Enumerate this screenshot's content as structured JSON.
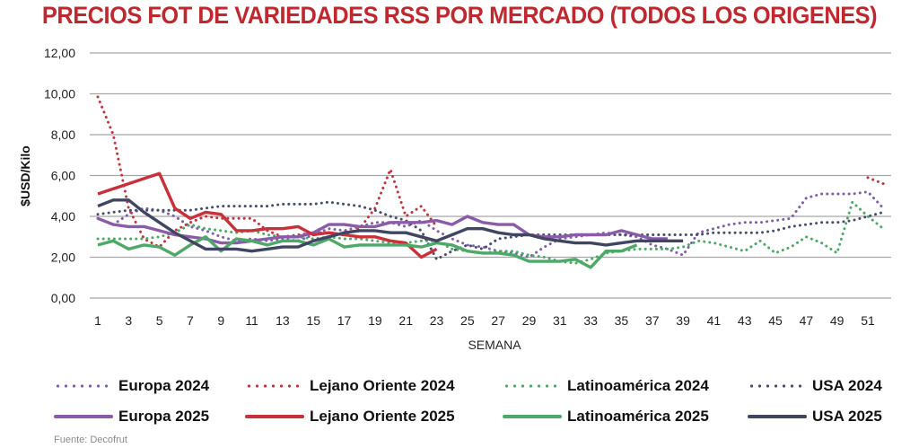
{
  "chart_data": {
    "type": "line",
    "title": "PRECIOS FOT DE VARIEDADES RSS POR MERCADO (TODOS LOS ORIGENES)",
    "xlabel": "SEMANA",
    "ylabel": "$USD/Kilo",
    "ylim": [
      0,
      12
    ],
    "yticks": [
      "0,00",
      "2,00",
      "4,00",
      "6,00",
      "8,00",
      "10,00",
      "12,00"
    ],
    "ytick_values": [
      0,
      2,
      4,
      6,
      8,
      10,
      12
    ],
    "xticks": [
      "1",
      "3",
      "5",
      "7",
      "9",
      "11",
      "13",
      "15",
      "17",
      "19",
      "21",
      "23",
      "25",
      "27",
      "29",
      "31",
      "33",
      "35",
      "37",
      "39",
      "41",
      "43",
      "45",
      "47",
      "49",
      "51"
    ],
    "xlim": [
      1,
      52
    ],
    "grid": "horizontal",
    "legend_placement": "bottom",
    "series": [
      {
        "name": "Europa 2024",
        "color": "#7f5fa8",
        "style": "dotted",
        "start_week": 1,
        "values": [
          3.9,
          3.6,
          4.1,
          4.4,
          4.3,
          4.0,
          3.5,
          3.3,
          3.0,
          2.8,
          2.9,
          2.8,
          2.9,
          2.8,
          3.1,
          3.4,
          3.3,
          3.5,
          3.7,
          3.7,
          3.5,
          3.8,
          3.3,
          2.9,
          2.6,
          2.5,
          2.3,
          2.2,
          2.0,
          2.5,
          2.9,
          3.0,
          3.1,
          3.2,
          3.1,
          3.0,
          2.6,
          2.4,
          2.1,
          3.2,
          3.4,
          3.6,
          3.7,
          3.7,
          3.8,
          3.9,
          4.9,
          5.1,
          5.1,
          5.1,
          5.2,
          4.4
        ]
      },
      {
        "name": "Lejano Oriente 2024",
        "color": "#c0363e",
        "style": "dotted",
        "start_week": 1,
        "values": [
          9.85,
          8.0,
          4.4,
          2.9,
          2.5,
          3.3,
          3.7,
          4.0,
          3.9,
          3.9,
          3.9,
          3.3,
          3.0,
          3.1,
          3.2,
          3.2,
          3.1,
          3.4,
          4.4,
          6.3,
          4.0,
          4.5,
          3.5,
          null,
          null,
          null,
          null,
          null,
          null,
          null,
          null,
          null,
          null,
          null,
          null,
          null,
          null,
          null,
          null,
          null,
          null,
          null,
          null,
          null,
          null,
          null,
          null,
          null,
          null,
          null,
          5.9,
          5.6
        ]
      },
      {
        "name": "Latinoamérica 2024",
        "color": "#4ea868",
        "style": "dotted",
        "start_week": 1,
        "values": [
          2.9,
          2.9,
          2.9,
          2.9,
          3.0,
          3.2,
          3.6,
          3.4,
          3.3,
          3.2,
          3.3,
          3.1,
          3.0,
          3.0,
          2.9,
          3.0,
          2.9,
          2.9,
          2.8,
          2.7,
          2.7,
          2.8,
          2.8,
          2.4,
          2.3,
          2.2,
          2.3,
          2.3,
          2.1,
          2.0,
          1.8,
          1.7,
          1.9,
          2.2,
          2.3,
          2.4,
          2.4,
          2.4,
          2.5,
          2.8,
          2.7,
          2.5,
          2.3,
          2.8,
          2.2,
          2.5,
          3.0,
          2.7,
          2.2,
          4.7,
          4.0,
          3.4
        ]
      },
      {
        "name": "USA 2024",
        "color": "#474d6b",
        "style": "dotted",
        "start_week": 1,
        "values": [
          4.1,
          4.2,
          4.3,
          4.3,
          4.3,
          4.3,
          4.3,
          4.4,
          4.5,
          4.5,
          4.5,
          4.5,
          4.6,
          4.6,
          4.6,
          4.7,
          4.6,
          4.5,
          4.3,
          4.0,
          3.8,
          3.3,
          1.9,
          2.3,
          2.6,
          2.4,
          2.9,
          3.0,
          3.1,
          3.1,
          3.1,
          3.1,
          3.1,
          3.1,
          3.1,
          3.1,
          3.1,
          3.1,
          3.1,
          3.1,
          3.2,
          3.2,
          3.2,
          3.2,
          3.3,
          3.5,
          3.6,
          3.7,
          3.7,
          3.8,
          4.0,
          4.2
        ]
      },
      {
        "name": "Europa 2025",
        "color": "#8a5ca8",
        "style": "solid",
        "start_week": 1,
        "values": [
          3.9,
          3.6,
          3.5,
          3.5,
          3.3,
          3.1,
          3.0,
          2.9,
          2.7,
          2.7,
          2.8,
          2.9,
          3.0,
          3.0,
          3.2,
          3.6,
          3.6,
          3.5,
          3.5,
          3.7,
          3.7,
          3.7,
          3.8,
          3.6,
          4.0,
          3.7,
          3.6,
          3.6,
          3.1,
          3.0,
          3.0,
          3.1,
          3.1,
          3.1,
          3.3,
          3.1,
          2.9,
          2.9,
          null,
          null,
          null,
          null,
          null,
          null,
          null,
          null,
          null,
          null,
          null,
          null,
          null,
          null
        ]
      },
      {
        "name": "Lejano Oriente 2025",
        "color": "#c8303a",
        "style": "solid",
        "start_week": 1,
        "values": [
          5.1,
          5.35,
          5.6,
          5.85,
          6.1,
          4.4,
          3.9,
          4.2,
          4.1,
          3.3,
          3.3,
          3.4,
          3.4,
          3.5,
          3.1,
          3.2,
          3.1,
          3.0,
          3.0,
          2.8,
          2.7,
          2.0,
          2.4,
          null,
          null,
          null,
          null,
          null,
          null,
          null,
          null,
          null,
          null,
          null,
          null,
          null,
          null,
          null,
          null,
          null,
          null,
          null,
          null,
          null,
          null,
          null,
          null,
          null,
          null,
          null,
          null,
          null
        ]
      },
      {
        "name": "Latinoamérica 2025",
        "color": "#4ea868",
        "style": "solid",
        "start_week": 1,
        "values": [
          2.6,
          2.8,
          2.4,
          2.6,
          2.5,
          2.1,
          2.6,
          3.0,
          2.3,
          2.9,
          2.8,
          2.6,
          2.8,
          2.8,
          2.6,
          2.9,
          2.5,
          2.6,
          2.6,
          2.6,
          2.6,
          2.5,
          2.7,
          2.6,
          2.3,
          2.2,
          2.2,
          2.1,
          1.8,
          1.8,
          1.8,
          1.9,
          1.5,
          2.3,
          2.3,
          2.6,
          null,
          null,
          null,
          null,
          null,
          null,
          null,
          null,
          null,
          null,
          null,
          null,
          null,
          null,
          null,
          null
        ]
      },
      {
        "name": "USA 2025",
        "color": "#404662",
        "style": "solid",
        "start_week": 1,
        "values": [
          4.5,
          4.8,
          4.8,
          4.2,
          3.7,
          3.2,
          2.8,
          2.4,
          2.4,
          2.4,
          2.3,
          2.4,
          2.5,
          2.5,
          2.8,
          3.0,
          3.2,
          3.3,
          3.3,
          3.2,
          3.2,
          3.0,
          2.8,
          3.1,
          3.4,
          3.4,
          3.2,
          3.1,
          3.1,
          2.9,
          2.8,
          2.7,
          2.7,
          2.6,
          2.7,
          2.8,
          2.8,
          2.8,
          2.8,
          null,
          null,
          null,
          null,
          null,
          null,
          null,
          null,
          null,
          null,
          null,
          null,
          null
        ]
      }
    ],
    "source": "Fuente: Decofrut"
  }
}
